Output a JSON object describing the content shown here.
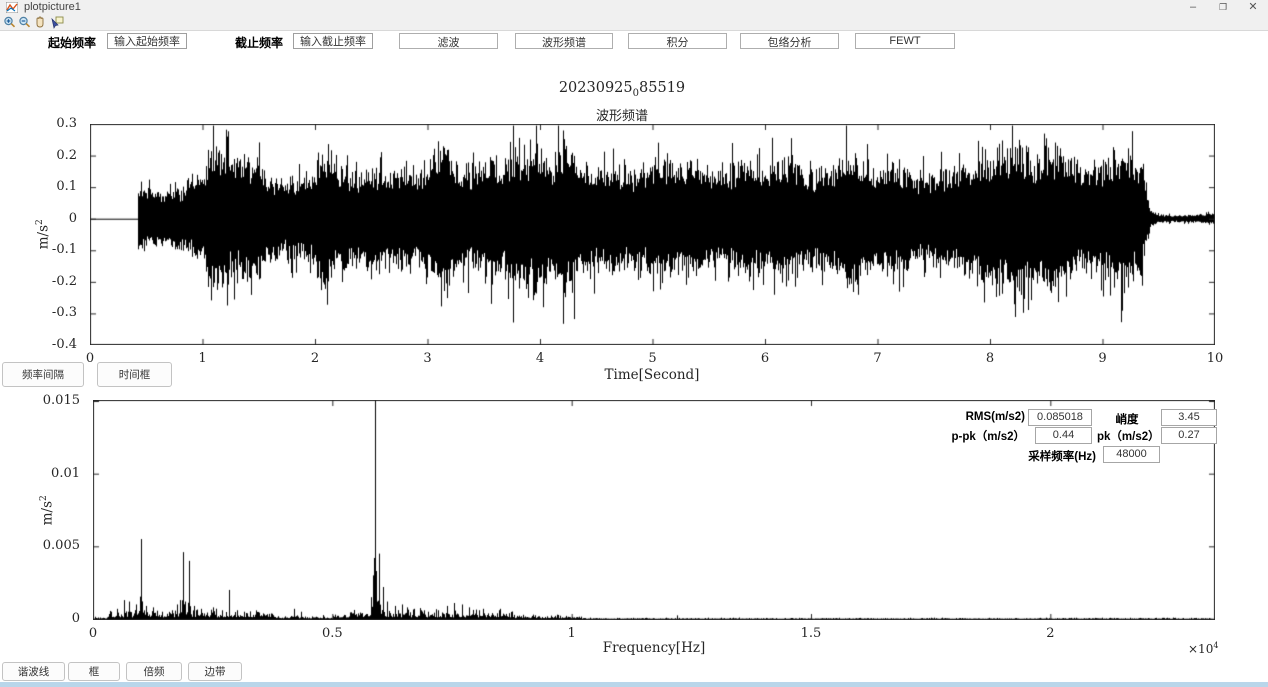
{
  "window": {
    "title": "plotpicture1",
    "minimize": "–",
    "restore": "❐",
    "close": "✕"
  },
  "toolbar": {
    "icons": [
      "zoom-in",
      "zoom-out",
      "pan",
      "datatip"
    ]
  },
  "controls": {
    "start_freq_label": "起始频率",
    "start_freq_value": "输入起始频率",
    "stop_freq_label": "截止频率",
    "stop_freq_value": "输入截止频率",
    "buttons": [
      "滤波",
      "波形频谱",
      "积分",
      "包络分析",
      "FEWT"
    ]
  },
  "figure": {
    "title_parts": [
      "20230925",
      "0",
      "85519"
    ],
    "subtitle": "波形频谱"
  },
  "mid_buttons": [
    "频率间隔",
    "时间框"
  ],
  "stats": {
    "rms_label": "RMS(m/s2)",
    "rms_value": "0.085018",
    "kurtosis_label": "峭度",
    "kurtosis_value": "3.45",
    "ppk_label": "p-pk（m/s2）",
    "ppk_value": "0.44",
    "pk_label": "pk（m/s2）",
    "pk_value": "0.27",
    "fs_label": "采样频率(Hz)",
    "fs_value": "48000"
  },
  "bottom_buttons": [
    "谐波线",
    "框",
    "倍频",
    "边带"
  ],
  "chart_data": [
    {
      "type": "line",
      "name": "waveform",
      "title": "20230925_085519 波形频谱",
      "xlabel": "Time[Second]",
      "ylabel_base": "m/s",
      "ylabel_exp": "2",
      "xlim": [
        0,
        10
      ],
      "ylim": [
        -0.4,
        0.3
      ],
      "xticks": {
        "values": [
          0,
          1,
          2,
          3,
          4,
          5,
          6,
          7,
          8,
          9,
          10
        ],
        "labels": [
          "0",
          "1",
          "2",
          "3",
          "4",
          "5",
          "6",
          "7",
          "8",
          "9",
          "10"
        ]
      },
      "yticks": {
        "values": [
          0.3,
          0.2,
          0.1,
          0,
          -0.1,
          -0.2,
          -0.3,
          -0.4
        ],
        "labels": [
          "0.3",
          "0.2",
          "0.1",
          "0",
          "-0.1",
          "-0.2",
          "-0.3",
          "-0.4"
        ]
      },
      "signal_start_s": 0.43,
      "signal_end_s": 9.4,
      "envelope": [
        [
          0.43,
          0.1
        ],
        [
          0.6,
          0.09
        ],
        [
          0.8,
          0.1
        ],
        [
          1.0,
          0.13
        ],
        [
          1.05,
          0.22
        ],
        [
          1.15,
          0.24
        ],
        [
          1.3,
          0.18
        ],
        [
          1.4,
          0.22
        ],
        [
          1.5,
          0.17
        ],
        [
          1.7,
          0.12
        ],
        [
          1.9,
          0.13
        ],
        [
          2.0,
          0.16
        ],
        [
          2.1,
          0.22
        ],
        [
          2.2,
          0.16
        ],
        [
          2.35,
          0.15
        ],
        [
          2.5,
          0.17
        ],
        [
          2.6,
          0.14
        ],
        [
          2.75,
          0.17
        ],
        [
          2.9,
          0.15
        ],
        [
          3.0,
          0.16
        ],
        [
          3.15,
          0.26
        ],
        [
          3.3,
          0.15
        ],
        [
          3.45,
          0.17
        ],
        [
          3.55,
          0.21
        ],
        [
          3.65,
          0.18
        ],
        [
          3.75,
          0.22
        ],
        [
          3.85,
          0.18
        ],
        [
          3.95,
          0.25
        ],
        [
          4.1,
          0.16
        ],
        [
          4.2,
          0.26
        ],
        [
          4.35,
          0.19
        ],
        [
          4.5,
          0.16
        ],
        [
          4.65,
          0.18
        ],
        [
          4.8,
          0.15
        ],
        [
          4.95,
          0.17
        ],
        [
          5.1,
          0.2
        ],
        [
          5.25,
          0.16
        ],
        [
          5.4,
          0.18
        ],
        [
          5.55,
          0.15
        ],
        [
          5.7,
          0.16
        ],
        [
          5.85,
          0.2
        ],
        [
          6.0,
          0.17
        ],
        [
          6.15,
          0.19
        ],
        [
          6.3,
          0.17
        ],
        [
          6.45,
          0.15
        ],
        [
          6.6,
          0.16
        ],
        [
          6.75,
          0.22
        ],
        [
          6.9,
          0.17
        ],
        [
          7.05,
          0.19
        ],
        [
          7.2,
          0.18
        ],
        [
          7.35,
          0.14
        ],
        [
          7.5,
          0.15
        ],
        [
          7.65,
          0.16
        ],
        [
          7.8,
          0.17
        ],
        [
          7.95,
          0.19
        ],
        [
          8.1,
          0.22
        ],
        [
          8.25,
          0.26
        ],
        [
          8.4,
          0.2
        ],
        [
          8.55,
          0.24
        ],
        [
          8.7,
          0.18
        ],
        [
          8.85,
          0.17
        ],
        [
          9.0,
          0.18
        ],
        [
          9.1,
          0.22
        ],
        [
          9.25,
          0.21
        ],
        [
          9.35,
          0.17
        ],
        [
          9.38,
          0.1
        ],
        [
          9.42,
          0.03
        ],
        [
          9.5,
          0.013
        ],
        [
          9.7,
          0.011
        ],
        [
          9.9,
          0.013
        ],
        [
          9.95,
          0.022
        ],
        [
          10,
          0.012
        ]
      ]
    },
    {
      "type": "line",
      "name": "spectrum",
      "xlabel": "Frequency[Hz]",
      "ylabel_base": "m/s",
      "ylabel_exp": "2",
      "x_multiplier_base": "×10",
      "x_multiplier_exp": "4",
      "xlim": [
        0,
        23440
      ],
      "ylim": [
        0,
        0.015
      ],
      "xticks": {
        "values": [
          0,
          5000,
          10000,
          15000,
          20000
        ],
        "labels": [
          "0",
          "0.5",
          "1",
          "1.5",
          "2"
        ]
      },
      "yticks": {
        "values": [
          0,
          0.005,
          0.01,
          0.015
        ],
        "labels": [
          "0",
          "0.005",
          "0.01",
          "0.015"
        ]
      },
      "peaks_hz_amp": [
        [
          500,
          0.0007
        ],
        [
          650,
          0.0013
        ],
        [
          750,
          0.0012
        ],
        [
          900,
          0.001
        ],
        [
          1000,
          0.0055
        ],
        [
          1100,
          0.0009
        ],
        [
          1250,
          0.0008
        ],
        [
          1450,
          0.0005
        ],
        [
          1650,
          0.0006
        ],
        [
          1750,
          0.001
        ],
        [
          1820,
          0.0013
        ],
        [
          1880,
          0.0046
        ],
        [
          1930,
          0.0012
        ],
        [
          2000,
          0.004
        ],
        [
          2100,
          0.0009
        ],
        [
          2250,
          0.0007
        ],
        [
          2500,
          0.0008
        ],
        [
          2700,
          0.0006
        ],
        [
          2850,
          0.002
        ],
        [
          3000,
          0.0006
        ],
        [
          3150,
          0.0005
        ],
        [
          3400,
          0.0004
        ],
        [
          4200,
          0.0007
        ],
        [
          4350,
          0.0005
        ],
        [
          5800,
          0.0015
        ],
        [
          5850,
          0.003
        ],
        [
          5900,
          0.015
        ],
        [
          5980,
          0.0045
        ],
        [
          6050,
          0.0022
        ],
        [
          6150,
          0.0012
        ],
        [
          6300,
          0.0009
        ],
        [
          6450,
          0.001
        ],
        [
          6550,
          0.0008
        ],
        [
          6700,
          0.0007
        ],
        [
          6850,
          0.0006
        ],
        [
          7000,
          0.0005
        ],
        [
          7200,
          0.0006
        ],
        [
          7400,
          0.0009
        ],
        [
          7550,
          0.0011
        ],
        [
          7700,
          0.001
        ],
        [
          7850,
          0.0008
        ],
        [
          8000,
          0.0006
        ],
        [
          8500,
          0.0007
        ],
        [
          8700,
          0.0004
        ],
        [
          9200,
          0.0003
        ],
        [
          12200,
          0.00025
        ],
        [
          13500,
          0.0001
        ],
        [
          15000,
          0.0001
        ],
        [
          20500,
          8e-05
        ]
      ],
      "noise_floor_hz_level": [
        [
          0,
          300,
          0.00012
        ],
        [
          300,
          3800,
          0.00045
        ],
        [
          3800,
          5200,
          0.00018
        ],
        [
          5200,
          6000,
          0.0004
        ],
        [
          6000,
          8800,
          0.00045
        ],
        [
          8800,
          10200,
          0.0002
        ],
        [
          10200,
          23440,
          6e-05
        ]
      ]
    }
  ]
}
